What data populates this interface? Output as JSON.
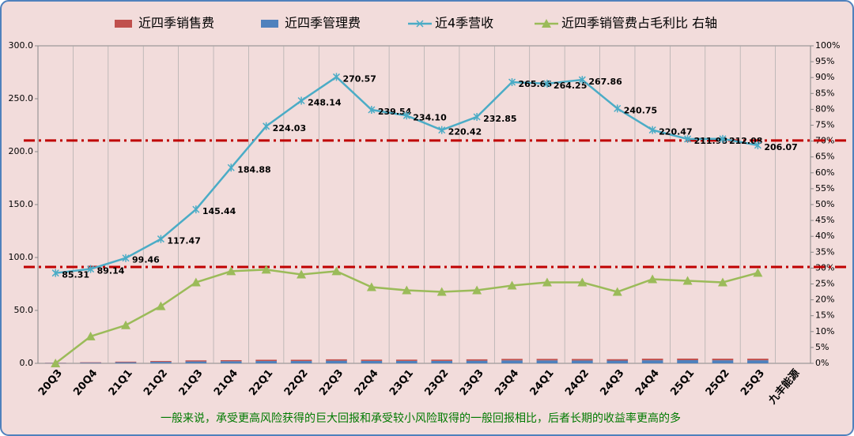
{
  "chart_data": {
    "type": "bar-line",
    "categories": [
      "20Q3",
      "20Q4",
      "21Q1",
      "21Q2",
      "21Q3",
      "21Q4",
      "22Q1",
      "22Q2",
      "22Q3",
      "22Q4",
      "23Q1",
      "23Q2",
      "23Q3",
      "23Q4",
      "24Q1",
      "24Q2",
      "24Q3",
      "24Q4",
      "25Q1",
      "25Q2",
      "25Q3",
      "九丰能源"
    ],
    "series": [
      {
        "name": "近四季销售费",
        "color": "#c0504d",
        "kind": "bar",
        "values": [
          0.2,
          0.4,
          0.6,
          0.8,
          1.0,
          1.0,
          1.2,
          1.2,
          1.3,
          1.2,
          1.2,
          1.2,
          1.3,
          1.4,
          1.4,
          1.4,
          1.3,
          1.5,
          1.5,
          1.5,
          1.5,
          null
        ]
      },
      {
        "name": "近四季管理费",
        "color": "#4f81bd",
        "kind": "bar",
        "values": [
          0.3,
          0.6,
          1.0,
          1.4,
          1.8,
          2.0,
          2.2,
          2.2,
          2.5,
          2.3,
          2.3,
          2.3,
          2.5,
          2.8,
          2.8,
          2.7,
          2.6,
          2.9,
          3.0,
          2.9,
          2.9,
          null
        ]
      },
      {
        "name": "近4季营收",
        "color": "#4bacc6",
        "kind": "line",
        "marker": "x",
        "values": [
          85.31,
          89.14,
          99.46,
          117.47,
          145.44,
          184.88,
          224.03,
          248.14,
          270.57,
          239.54,
          234.1,
          220.42,
          232.85,
          265.66,
          264.25,
          267.86,
          240.75,
          220.47,
          211.98,
          212.08,
          206.07,
          null
        ],
        "value_labels": [
          "85.31",
          "89.14",
          "99.46",
          "117.47",
          "145.44",
          "184.88",
          "224.03",
          "248.14",
          "270.57",
          "239.54",
          "234.10",
          "220.42",
          "232.85",
          "265.66",
          "264.25",
          "267.86",
          "240.75",
          "220.47",
          "211.98",
          "212.08",
          "206.07",
          null
        ]
      },
      {
        "name": "近四季销管费占毛利比  右轴",
        "color": "#9bbb59",
        "kind": "line",
        "marker": "triangle",
        "axis": "y2",
        "values": [
          0,
          8.5,
          12,
          18,
          25.5,
          29,
          29.5,
          28,
          29,
          24,
          23,
          22.5,
          23,
          24.5,
          25.5,
          25.5,
          22.5,
          26.5,
          26,
          25.5,
          28.5,
          null
        ]
      }
    ],
    "reference_lines": {
      "color": "#c00000",
      "values": [
        210.5,
        91
      ]
    },
    "ylim": [
      0,
      300
    ],
    "yticks": [
      {
        "value": 0,
        "label": "0.0"
      },
      {
        "value": 50,
        "label": "50.0"
      },
      {
        "value": 100,
        "label": "100.0"
      },
      {
        "value": 150,
        "label": "150.0"
      },
      {
        "value": 200,
        "label": "200.0"
      },
      {
        "value": 250,
        "label": "250.0"
      },
      {
        "value": 300,
        "label": "300.0"
      }
    ],
    "y2lim": [
      0,
      100
    ],
    "y2ticks": [
      {
        "value": 0,
        "label": "0%"
      },
      {
        "value": 5,
        "label": "5%"
      },
      {
        "value": 10,
        "label": "10%"
      },
      {
        "value": 15,
        "label": "15%"
      },
      {
        "value": 20,
        "label": "20%"
      },
      {
        "value": 25,
        "label": "25%"
      },
      {
        "value": 30,
        "label": "30%"
      },
      {
        "value": 35,
        "label": "35%"
      },
      {
        "value": 40,
        "label": "40%"
      },
      {
        "value": 45,
        "label": "45%"
      },
      {
        "value": 50,
        "label": "50%"
      },
      {
        "value": 55,
        "label": "55%"
      },
      {
        "value": 60,
        "label": "60%"
      },
      {
        "value": 65,
        "label": "65%"
      },
      {
        "value": 70,
        "label": "70%"
      },
      {
        "value": 75,
        "label": "75%"
      },
      {
        "value": 80,
        "label": "80%"
      },
      {
        "value": 85,
        "label": "85%"
      },
      {
        "value": 90,
        "label": "90%"
      },
      {
        "value": 95,
        "label": "95%"
      },
      {
        "value": 100,
        "label": "100%"
      }
    ],
    "annotation": "一般来说，承受更高风险获得的巨大回报和承受较小风险取得的一般回报相比，后者长期的收益率更高的多"
  }
}
